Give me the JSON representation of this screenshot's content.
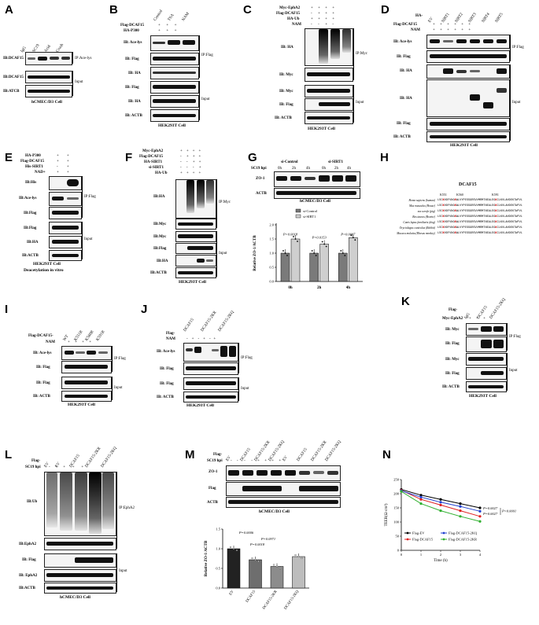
{
  "panels": {
    "A": {
      "letter": "A",
      "cols": [
        "IgG",
        "SC19",
        "Acid",
        "Crush"
      ],
      "rows": [
        "IB:DCAF15",
        "IB:DCAF15",
        "IB:ATCB"
      ],
      "groups": [
        "IP:Ace-lys",
        "Input"
      ],
      "caption": "hCMEC/D3 Cell"
    },
    "B": {
      "letter": "B",
      "cols": [
        "Control",
        "TSA",
        "NAM"
      ],
      "header": [
        "Flag-DCAF15",
        "HA-P300"
      ],
      "rows": [
        "IB: Ace-lys",
        "IB: Flag",
        "IB: HA",
        "IB: Flag",
        "IB: HA",
        "IB: ACTB"
      ],
      "groups": [
        "IP:Flag",
        "Input"
      ],
      "caption": "HEK293T Cell"
    },
    "C": {
      "letter": "C",
      "header": [
        "Myc-EphA2",
        "Flag-DCAF15",
        "HA-Ub",
        "NAM"
      ],
      "rows": [
        "IB: HA",
        "IB: Myc",
        "IB: Myc",
        "IB: Flag",
        "IB: ACTB"
      ],
      "groups": [
        "IP:Myc",
        "Input"
      ],
      "caption": "HEK293T Cell"
    },
    "D": {
      "letter": "D",
      "cols": [
        "EV",
        "SIRT1",
        "SIRT2",
        "SIRT3",
        "SIRT4",
        "SIRT5"
      ],
      "header": [
        "HA-",
        "Flag-DCAF15",
        "NAM"
      ],
      "rows": [
        "IB: Ace-lys",
        "IB: Flag",
        "IB: HA",
        "IB: HA",
        "IB: Flag",
        "IB: ACTB"
      ],
      "groups": [
        "IP:Flag",
        "Input"
      ],
      "caption": "HEK293T Cell"
    },
    "E": {
      "letter": "E",
      "header": [
        "HA-P300",
        "Flag-DCAF15",
        "His-SIRT1",
        "NAD+"
      ],
      "rows": [
        "IB:His",
        "IB:Ace-lys",
        "IB:Flag",
        "IB:Flag",
        "IB:HA",
        "IB:ACTB"
      ],
      "groups": [
        "IP:Flag",
        "Input"
      ],
      "caption": "HEK293T Cell",
      "caption2": "Deacetylation in vitro"
    },
    "F": {
      "letter": "F",
      "header": [
        "Myc-EphA2",
        "Flag-DCAF15",
        "HA-SIRT1",
        "si-SIRT1",
        "HA-Ub"
      ],
      "rows": [
        "IB:HA",
        "IB:Myc",
        "IB:Myc",
        "IB:Flag",
        "IB:HA",
        "IB:ACTB"
      ],
      "groups": [
        "IP:Myc",
        "Input"
      ],
      "caption": "HEK293T Cell"
    },
    "G": {
      "letter": "G",
      "sc19": "SC19 hpi",
      "groups": [
        "si-Control",
        "si-SIRT1"
      ],
      "times": [
        "0h",
        "2h",
        "4h",
        "0h",
        "2h",
        "4h"
      ],
      "rows": [
        "ZO-1",
        "ACTB"
      ],
      "caption": "hCMEC/D3 Cell",
      "legend": [
        "si-Control",
        "si-SIRT1"
      ],
      "ylabel": "Relative ZO-1/ACTB",
      "pvals": [
        "P=0.0018",
        "P=0.0153",
        "P=0.0007"
      ]
    },
    "H": {
      "letter": "H",
      "title": "DCAF15",
      "sites": [
        "K551",
        "K560",
        "K591"
      ],
      "species": [
        "Homo sapiens (human)",
        "Mus musculus (House)",
        "sus scrofa (pig)",
        "Bos taurus (Bovine)",
        "Canis lupus familiaris (dog)",
        "Oryctolagus cuniculus (Rabbit)",
        "Macaca mulatta (Rhesus monkey)"
      ]
    },
    "I": {
      "letter": "I",
      "header": "Flag-DCAF15-",
      "cols": [
        "WT",
        "K551R",
        "K560R",
        "K591R"
      ],
      "nam": "NAM",
      "rows": [
        "IB: Ace-lys",
        "IB: Flag",
        "IB: Flag",
        "IB: ACTB"
      ],
      "groups": [
        "IP:Flag",
        "Input"
      ],
      "caption": "HEK293T Cell"
    },
    "J": {
      "letter": "J",
      "header": "Flag-",
      "cols": [
        "DCAF15",
        "DCAF15-2KR",
        "DCAF15-2KQ"
      ],
      "nam": "NAM",
      "rows": [
        "IB: Ace-lys",
        "IB: Flag",
        "IB: Flag",
        "IB: ACTB"
      ],
      "groups": [
        "IP:Flag",
        "Input"
      ],
      "caption": "HEK293T Cell"
    },
    "K": {
      "letter": "K",
      "header": [
        "Flag-",
        "Myc-EphA2"
      ],
      "cols": [
        "IgG",
        "DCAF15",
        "DCAF15-2KQ"
      ],
      "rows": [
        "IB: Myc",
        "IB: Flag",
        "IB: Myc",
        "IB: Flag",
        "IB: ACTB"
      ],
      "groups": [
        "IP:Flag",
        "Input"
      ],
      "caption": "HEK293T Cell"
    },
    "L": {
      "letter": "L",
      "header": [
        "Flag-",
        "SC19 hpi"
      ],
      "cols": [
        "EV",
        "EV",
        "DCAF15",
        "DCAF15-2KR",
        "DCAF15-2KQ"
      ],
      "rows": [
        "IB:Ub",
        "IB:EphA2",
        "IB: Flag",
        "IB: EphA2",
        "IB:ACTB"
      ],
      "groups": [
        "IP:EphA2",
        "Input"
      ],
      "caption": "hCMEC/D3 Cell"
    },
    "M": {
      "letter": "M",
      "header": [
        "Flag-",
        "SC19 hpi"
      ],
      "cols": [
        "EV",
        "DCAF15",
        "DCAF15-2KR",
        "DCAF15-2KQ",
        "EV",
        "DCAF15",
        "DCAF15-2KR",
        "DCAF15-2KQ"
      ],
      "rows": [
        "ZO-1",
        "Flag",
        "ACTB"
      ],
      "caption": "hCMEC/D3 Cell",
      "ylabel": "Relative ZO-1/ACTB",
      "pvals": [
        "P=0.0006",
        "P=0.0018",
        "P=0.0971"
      ],
      "bars": [
        "EV",
        "DCAF15",
        "DCAF15-2KR",
        "DCAF15-2KQ"
      ]
    },
    "N": {
      "letter": "N",
      "ylabel": "TEER(Ω·cm²)",
      "xlabel": "Time (h)",
      "legend": [
        "Flag-EV",
        "Flag-DCAF15-2KQ",
        "Flag-DCAF15",
        "Flag-DCAF15-2KR"
      ],
      "pvals": [
        "P=0.0027",
        "P=0.0001",
        "P=0.0027"
      ]
    }
  },
  "colors": {
    "ev": "#000000",
    "dcaf15": "#e02020",
    "kq": "#2040d0",
    "kr": "#30b030"
  },
  "chart_data": [
    {
      "type": "bar",
      "panel": "G",
      "categories": [
        "0h",
        "2h",
        "4h"
      ],
      "series": [
        {
          "name": "si-Control",
          "values": [
            1.0,
            1.0,
            1.0
          ]
        },
        {
          "name": "si-SIRT1",
          "values": [
            1.5,
            1.32,
            1.55
          ]
        }
      ],
      "ylabel": "Relative ZO-1/ACTB",
      "ylim": [
        0,
        2.0
      ],
      "xlim_ticks": [
        "0.0",
        "0.5",
        "1.0",
        "1.5",
        "2.0"
      ]
    },
    {
      "type": "bar",
      "panel": "M",
      "categories": [
        "EV",
        "DCAF15",
        "DCAF15-2KR",
        "DCAF15-2KQ"
      ],
      "values": [
        1.0,
        0.72,
        0.55,
        0.8
      ],
      "ylabel": "Relative ZO-1/ACTB",
      "ylim": [
        0,
        1.5
      ]
    },
    {
      "type": "line",
      "panel": "N",
      "x": [
        0,
        1,
        2,
        3,
        4
      ],
      "xlabel": "Time (h)",
      "ylabel": "TEER(Ω·cm²)",
      "ylim": [
        0,
        250
      ],
      "series": [
        {
          "name": "Flag-EV",
          "values": [
            215,
            195,
            180,
            165,
            150
          ]
        },
        {
          "name": "Flag-DCAF15",
          "values": [
            212,
            180,
            160,
            140,
            120
          ]
        },
        {
          "name": "Flag-DCAF15-2KQ",
          "values": [
            210,
            188,
            170,
            155,
            138
          ]
        },
        {
          "name": "Flag-DCAF15-2KR",
          "values": [
            208,
            165,
            140,
            120,
            102
          ]
        }
      ]
    }
  ]
}
